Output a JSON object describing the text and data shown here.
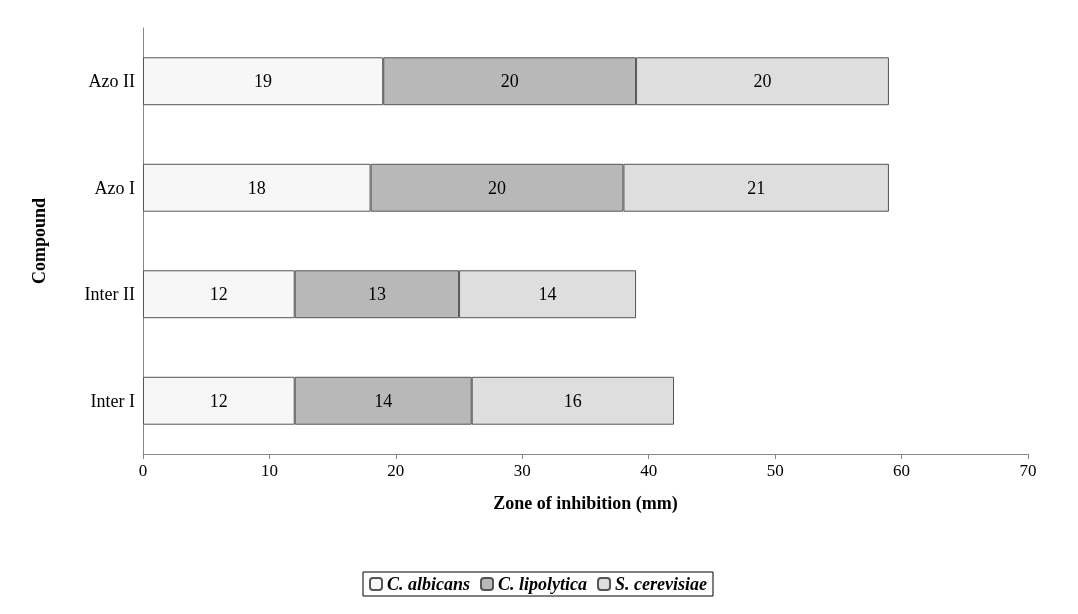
{
  "chart_data": {
    "type": "bar",
    "orientation": "horizontal",
    "stacked": true,
    "xlabel": "Zone of inhibition (mm)",
    "ylabel": "Compound",
    "categories": [
      "Azo II",
      "Azo I",
      "Inter II",
      "Inter I"
    ],
    "series": [
      {
        "name": "C. albicans",
        "color": "#f7f7f7",
        "values": [
          19,
          18,
          12,
          12
        ]
      },
      {
        "name": "C. lipolytica",
        "color": "#b8b8b8",
        "values": [
          20,
          20,
          13,
          14
        ]
      },
      {
        "name": "S. cerevisiae",
        "color": "#dedede",
        "values": [
          20,
          21,
          14,
          16
        ]
      }
    ],
    "xlim": [
      0,
      70
    ],
    "xticks": [
      0,
      10,
      20,
      30,
      40,
      50,
      60,
      70
    ],
    "grid": false,
    "legend": "bottom",
    "data_labels": true
  }
}
